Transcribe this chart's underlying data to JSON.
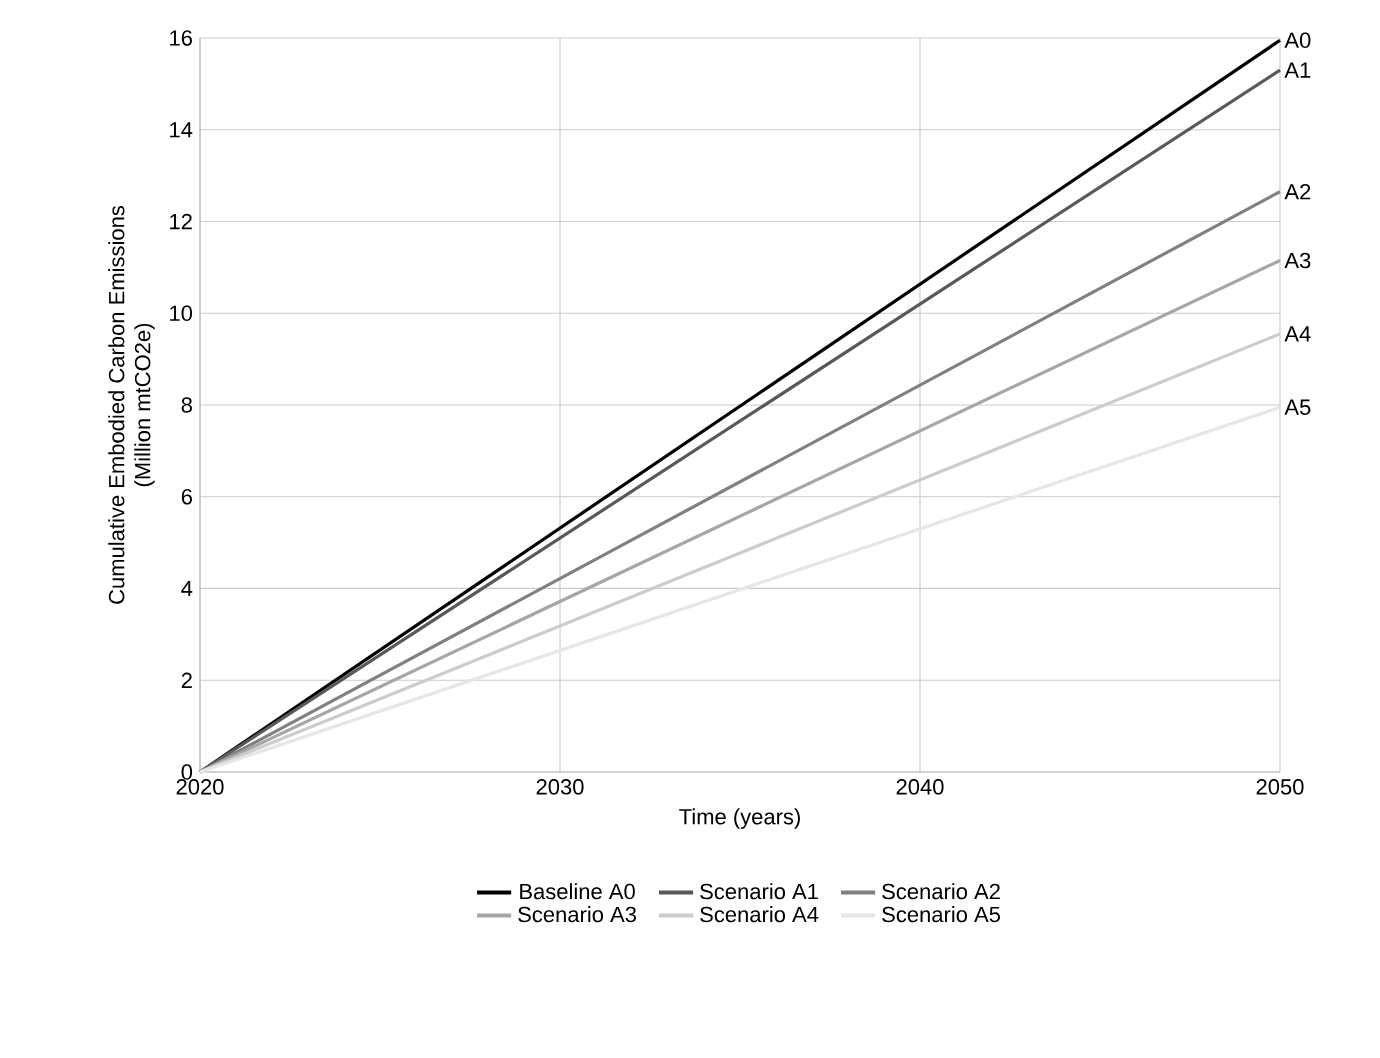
{
  "chart_data": {
    "type": "line",
    "xlabel": "Time (years)",
    "ylabel": "Cumulative Embodied Carbon Emissions\n(Million mtCO2e)",
    "x": [
      2020,
      2050
    ],
    "series": [
      {
        "name": "Baseline A0",
        "color": "#000000",
        "values": [
          0,
          15.95
        ]
      },
      {
        "name": "Scenario A1",
        "color": "#595959",
        "values": [
          0,
          15.3
        ]
      },
      {
        "name": "Scenario A2",
        "color": "#808080",
        "values": [
          0,
          12.65
        ]
      },
      {
        "name": "Scenario A3",
        "color": "#a6a6a6",
        "values": [
          0,
          11.15
        ]
      },
      {
        "name": "Scenario A4",
        "color": "#cccccc",
        "values": [
          0,
          9.55
        ]
      },
      {
        "name": "Scenario A5",
        "color": "#e6e6e6",
        "values": [
          0,
          7.95
        ]
      }
    ],
    "annotations": [
      "A0",
      "A1",
      "A2",
      "A3",
      "A4",
      "A5"
    ],
    "xlim": [
      2020,
      2050
    ],
    "xticks": [
      2020,
      2030,
      2040,
      2050
    ],
    "ylim": [
      0,
      16
    ],
    "yticks": [
      0,
      2,
      4,
      6,
      8,
      10,
      12,
      14,
      16
    ],
    "grid": true,
    "legend": "bottom",
    "marker": "none",
    "line_style": "solid"
  }
}
